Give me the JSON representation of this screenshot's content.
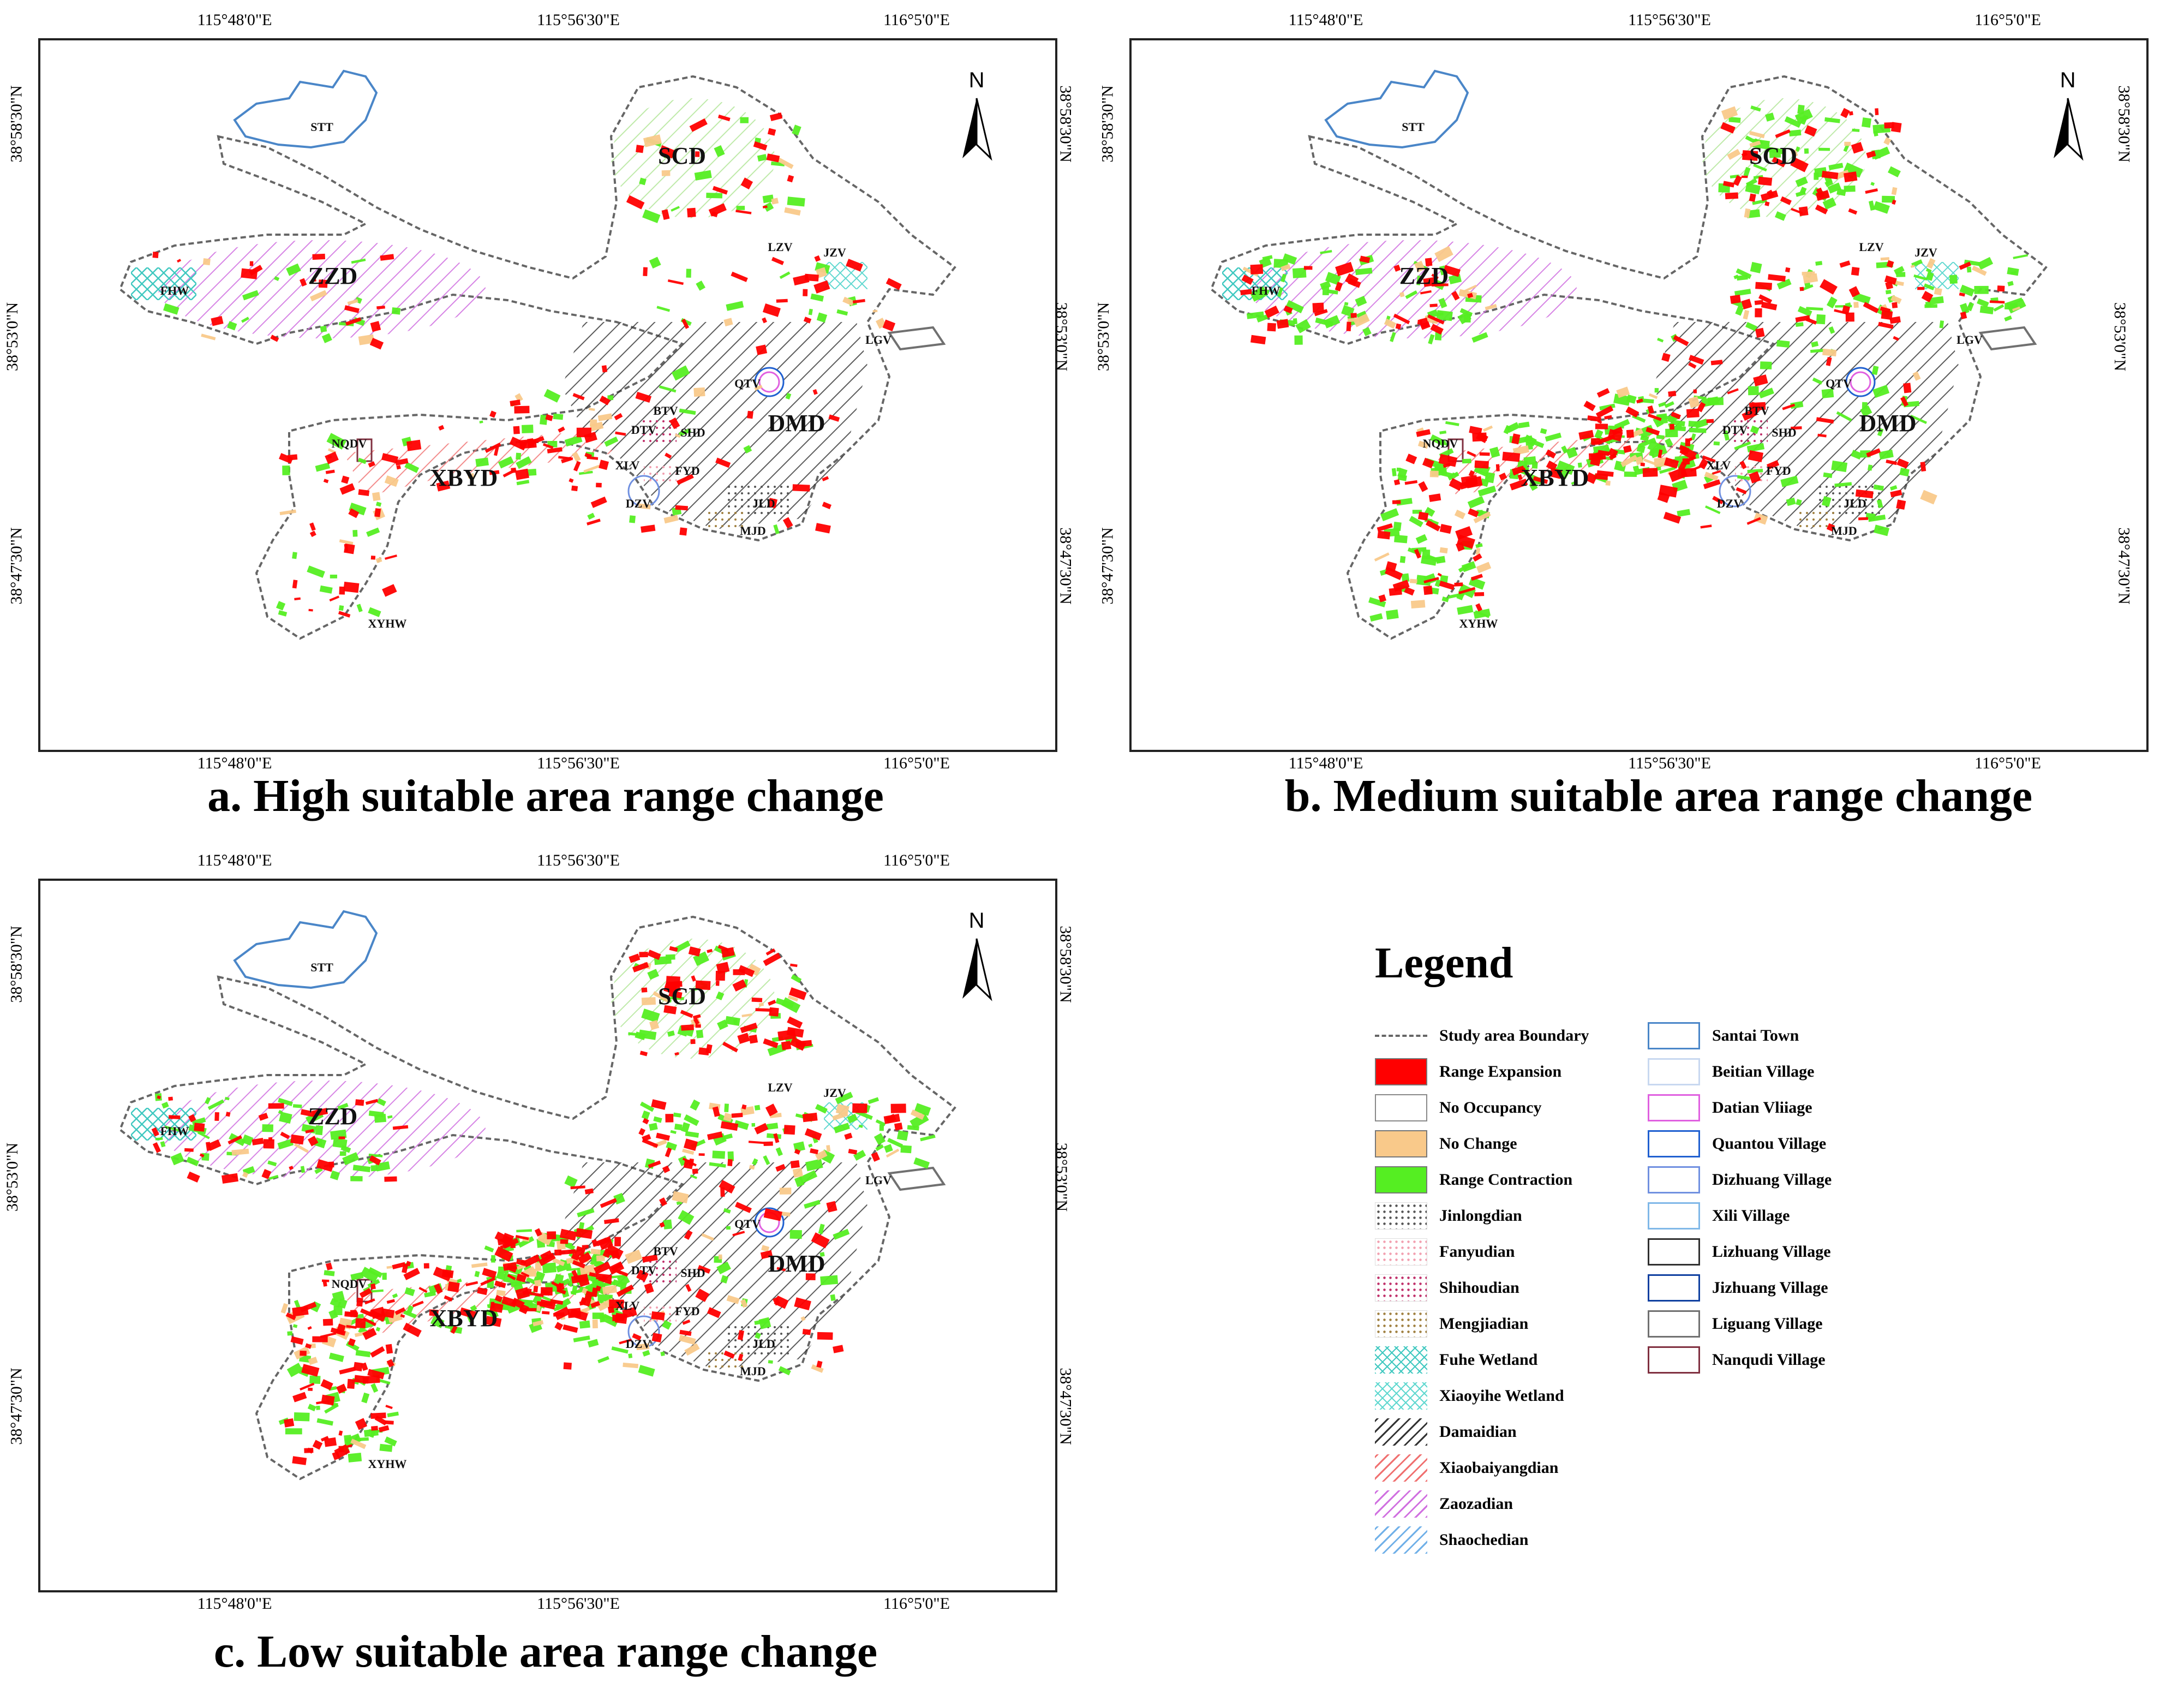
{
  "panels": [
    {
      "id": "a",
      "caption": "a. High suitable area range change",
      "lon_ticks": [
        "115°48'0\"E",
        "115°56'30\"E",
        "116°5'0\"E"
      ],
      "lat_ticks": [
        "38°58'30\"N",
        "38°53'0\"N",
        "38°47'30\"N"
      ],
      "north_label": "N",
      "region_labels": [
        "SCD",
        "ZZD",
        "DMD",
        "XBYD"
      ],
      "village_labels": [
        "STT",
        "FHW",
        "LZV",
        "JZV",
        "LGV",
        "QTV",
        "BTV",
        "DTV",
        "SHD",
        "XLV",
        "FYD",
        "DZV",
        "JLD",
        "MJD",
        "NQDV",
        "XYHW"
      ]
    },
    {
      "id": "b",
      "caption": "b. Medium suitable area range change",
      "lon_ticks": [
        "115°48'0\"E",
        "115°56'30\"E",
        "116°5'0\"E"
      ],
      "lat_ticks": [
        "38°58'30\"N",
        "38°53'0\"N",
        "38°47'30\"N"
      ],
      "north_label": "N",
      "region_labels": [
        "SCD",
        "ZZD",
        "DMD",
        "XBYD"
      ],
      "village_labels": [
        "STT",
        "FHW",
        "LZV",
        "JZV",
        "LGV",
        "QTV",
        "BTV",
        "DTV",
        "SHD",
        "XLV",
        "FYD",
        "DZV",
        "JLD",
        "MJD",
        "NQDV",
        "XYHW"
      ]
    },
    {
      "id": "c",
      "caption": "c. Low suitable area range change",
      "lon_ticks": [
        "115°48'0\"E",
        "115°56'30\"E",
        "116°5'0\"E"
      ],
      "lat_ticks": [
        "38°58'30\"N",
        "38°53'0\"N",
        "38°47'30\"N"
      ],
      "north_label": "N",
      "region_labels": [
        "SCD",
        "ZZD",
        "DMD",
        "XBYD"
      ],
      "village_labels": [
        "STT",
        "FHW",
        "LZV",
        "JZV",
        "LGV",
        "QTV",
        "BTV",
        "DTV",
        "SHD",
        "XLV",
        "FYD",
        "DZV",
        "JLD",
        "MJD",
        "NQDV",
        "XYHW"
      ]
    }
  ],
  "legend": {
    "title": "Legend",
    "left_column": [
      {
        "label": "Study area Boundary",
        "style": "dashline",
        "color": "#666666"
      },
      {
        "label": "Range Expansion",
        "style": "fill",
        "color": "#ff0000"
      },
      {
        "label": "No Occupancy",
        "style": "outline",
        "color": "#888888"
      },
      {
        "label": "No Change",
        "style": "fill",
        "color": "#f9c98a"
      },
      {
        "label": "Range Contraction",
        "style": "fill",
        "color": "#55ee22"
      },
      {
        "label": "Jinlongdian",
        "style": "dots",
        "color": "#555555"
      },
      {
        "label": "Fanyudian",
        "style": "dots",
        "color": "#f2a0b0"
      },
      {
        "label": "Shihoudian",
        "style": "dots",
        "color": "#c0306a"
      },
      {
        "label": "Mengjiadian",
        "style": "dots",
        "color": "#a08040"
      },
      {
        "label": "Fuhe Wetland",
        "style": "cross",
        "color": "#40c8c0"
      },
      {
        "label": "Xiaoyihe Wetland",
        "style": "cross",
        "color": "#60d8d0"
      },
      {
        "label": "Damaidian",
        "style": "hatch",
        "color": "#333333"
      },
      {
        "label": "Xiaobaiyangdian",
        "style": "hatch",
        "color": "#f07070"
      },
      {
        "label": "Zaozadian",
        "style": "hatch",
        "color": "#d070e0"
      },
      {
        "label": "Shaochedian",
        "style": "hatch",
        "color": "#70b0e8"
      }
    ],
    "right_column": [
      {
        "label": "Santai Town",
        "color": "#4a86c8"
      },
      {
        "label": "Beitian Village",
        "color": "#c8d8f0"
      },
      {
        "label": "Datian Vliiage",
        "color": "#e060e0"
      },
      {
        "label": "Quantou Village",
        "color": "#2060d0"
      },
      {
        "label": "Dizhuang Village",
        "color": "#7090e0"
      },
      {
        "label": "Xili Village",
        "color": "#80b8e8"
      },
      {
        "label": "Lizhuang Village",
        "color": "#303030"
      },
      {
        "label": "Jizhuang Village",
        "color": "#1040a0"
      },
      {
        "label": "Liguang Village",
        "color": "#707070"
      },
      {
        "label": "Nanqudi Village",
        "color": "#803040"
      }
    ]
  },
  "colors": {
    "expansion": "#ff0000",
    "contraction": "#55ee22",
    "no_change": "#f9c98a",
    "boundary": "#666666"
  }
}
